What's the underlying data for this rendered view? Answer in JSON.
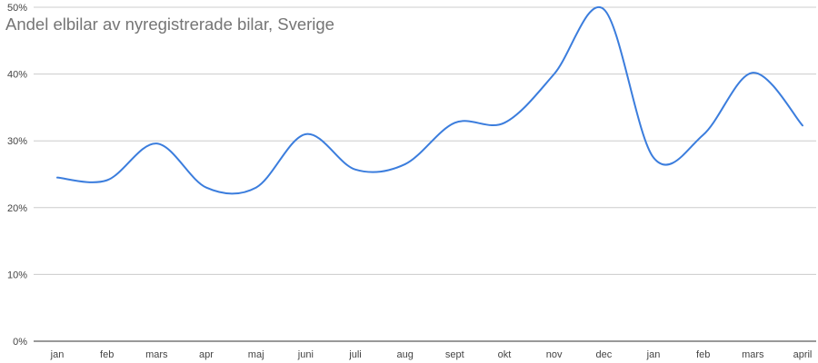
{
  "chart_data": {
    "type": "line",
    "title": "Andel elbilar av nyregistrerade bilar, Sverige",
    "xlabel": "",
    "ylabel": "",
    "categories": [
      "jan",
      "feb",
      "mars",
      "apr",
      "maj",
      "juni",
      "juli",
      "aug",
      "sept",
      "okt",
      "nov",
      "dec",
      "jan",
      "feb",
      "mars",
      "april"
    ],
    "series": [
      {
        "values": [
          24.5,
          24.1,
          29.6,
          23.0,
          23.0,
          31.0,
          25.7,
          26.5,
          32.7,
          32.7,
          40.0,
          49.7,
          27.5,
          30.9,
          40.2,
          32.3
        ]
      }
    ],
    "yticks": [
      "0%",
      "10%",
      "20%",
      "30%",
      "40%",
      "50%"
    ],
    "ylim": [
      0,
      50
    ],
    "grid": true,
    "line_color": "#3b7ddd"
  }
}
